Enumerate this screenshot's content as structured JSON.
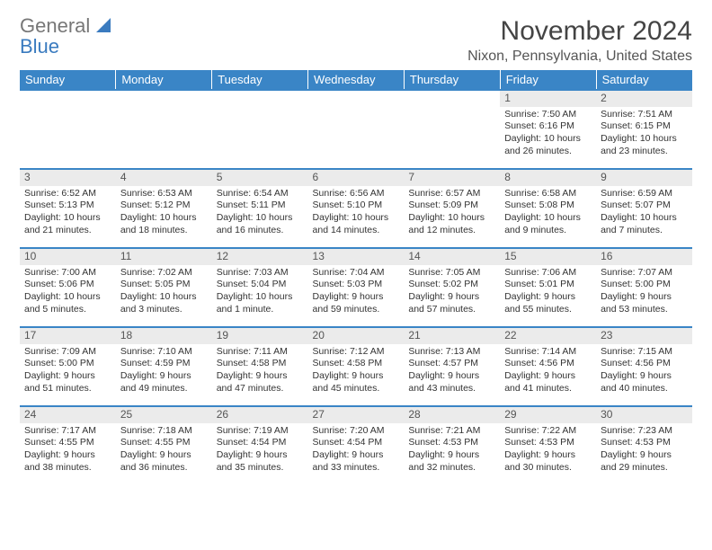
{
  "brand": {
    "part1": "General",
    "part2": "Blue"
  },
  "title": "November 2024",
  "location": "Nixon, Pennsylvania, United States",
  "colors": {
    "headerBg": "#3a85c6",
    "shade": "#ebebeb"
  },
  "dayNames": [
    "Sunday",
    "Monday",
    "Tuesday",
    "Wednesday",
    "Thursday",
    "Friday",
    "Saturday"
  ],
  "weeks": [
    [
      null,
      null,
      null,
      null,
      null,
      {
        "n": "1",
        "sunrise": "7:50 AM",
        "sunset": "6:16 PM",
        "daylight": "10 hours and 26 minutes."
      },
      {
        "n": "2",
        "sunrise": "7:51 AM",
        "sunset": "6:15 PM",
        "daylight": "10 hours and 23 minutes."
      }
    ],
    [
      {
        "n": "3",
        "sunrise": "6:52 AM",
        "sunset": "5:13 PM",
        "daylight": "10 hours and 21 minutes."
      },
      {
        "n": "4",
        "sunrise": "6:53 AM",
        "sunset": "5:12 PM",
        "daylight": "10 hours and 18 minutes."
      },
      {
        "n": "5",
        "sunrise": "6:54 AM",
        "sunset": "5:11 PM",
        "daylight": "10 hours and 16 minutes."
      },
      {
        "n": "6",
        "sunrise": "6:56 AM",
        "sunset": "5:10 PM",
        "daylight": "10 hours and 14 minutes."
      },
      {
        "n": "7",
        "sunrise": "6:57 AM",
        "sunset": "5:09 PM",
        "daylight": "10 hours and 12 minutes."
      },
      {
        "n": "8",
        "sunrise": "6:58 AM",
        "sunset": "5:08 PM",
        "daylight": "10 hours and 9 minutes."
      },
      {
        "n": "9",
        "sunrise": "6:59 AM",
        "sunset": "5:07 PM",
        "daylight": "10 hours and 7 minutes."
      }
    ],
    [
      {
        "n": "10",
        "sunrise": "7:00 AM",
        "sunset": "5:06 PM",
        "daylight": "10 hours and 5 minutes."
      },
      {
        "n": "11",
        "sunrise": "7:02 AM",
        "sunset": "5:05 PM",
        "daylight": "10 hours and 3 minutes."
      },
      {
        "n": "12",
        "sunrise": "7:03 AM",
        "sunset": "5:04 PM",
        "daylight": "10 hours and 1 minute."
      },
      {
        "n": "13",
        "sunrise": "7:04 AM",
        "sunset": "5:03 PM",
        "daylight": "9 hours and 59 minutes."
      },
      {
        "n": "14",
        "sunrise": "7:05 AM",
        "sunset": "5:02 PM",
        "daylight": "9 hours and 57 minutes."
      },
      {
        "n": "15",
        "sunrise": "7:06 AM",
        "sunset": "5:01 PM",
        "daylight": "9 hours and 55 minutes."
      },
      {
        "n": "16",
        "sunrise": "7:07 AM",
        "sunset": "5:00 PM",
        "daylight": "9 hours and 53 minutes."
      }
    ],
    [
      {
        "n": "17",
        "sunrise": "7:09 AM",
        "sunset": "5:00 PM",
        "daylight": "9 hours and 51 minutes."
      },
      {
        "n": "18",
        "sunrise": "7:10 AM",
        "sunset": "4:59 PM",
        "daylight": "9 hours and 49 minutes."
      },
      {
        "n": "19",
        "sunrise": "7:11 AM",
        "sunset": "4:58 PM",
        "daylight": "9 hours and 47 minutes."
      },
      {
        "n": "20",
        "sunrise": "7:12 AM",
        "sunset": "4:58 PM",
        "daylight": "9 hours and 45 minutes."
      },
      {
        "n": "21",
        "sunrise": "7:13 AM",
        "sunset": "4:57 PM",
        "daylight": "9 hours and 43 minutes."
      },
      {
        "n": "22",
        "sunrise": "7:14 AM",
        "sunset": "4:56 PM",
        "daylight": "9 hours and 41 minutes."
      },
      {
        "n": "23",
        "sunrise": "7:15 AM",
        "sunset": "4:56 PM",
        "daylight": "9 hours and 40 minutes."
      }
    ],
    [
      {
        "n": "24",
        "sunrise": "7:17 AM",
        "sunset": "4:55 PM",
        "daylight": "9 hours and 38 minutes."
      },
      {
        "n": "25",
        "sunrise": "7:18 AM",
        "sunset": "4:55 PM",
        "daylight": "9 hours and 36 minutes."
      },
      {
        "n": "26",
        "sunrise": "7:19 AM",
        "sunset": "4:54 PM",
        "daylight": "9 hours and 35 minutes."
      },
      {
        "n": "27",
        "sunrise": "7:20 AM",
        "sunset": "4:54 PM",
        "daylight": "9 hours and 33 minutes."
      },
      {
        "n": "28",
        "sunrise": "7:21 AM",
        "sunset": "4:53 PM",
        "daylight": "9 hours and 32 minutes."
      },
      {
        "n": "29",
        "sunrise": "7:22 AM",
        "sunset": "4:53 PM",
        "daylight": "9 hours and 30 minutes."
      },
      {
        "n": "30",
        "sunrise": "7:23 AM",
        "sunset": "4:53 PM",
        "daylight": "9 hours and 29 minutes."
      }
    ]
  ],
  "labels": {
    "sunrise": "Sunrise:",
    "sunset": "Sunset:",
    "daylight": "Daylight:"
  }
}
